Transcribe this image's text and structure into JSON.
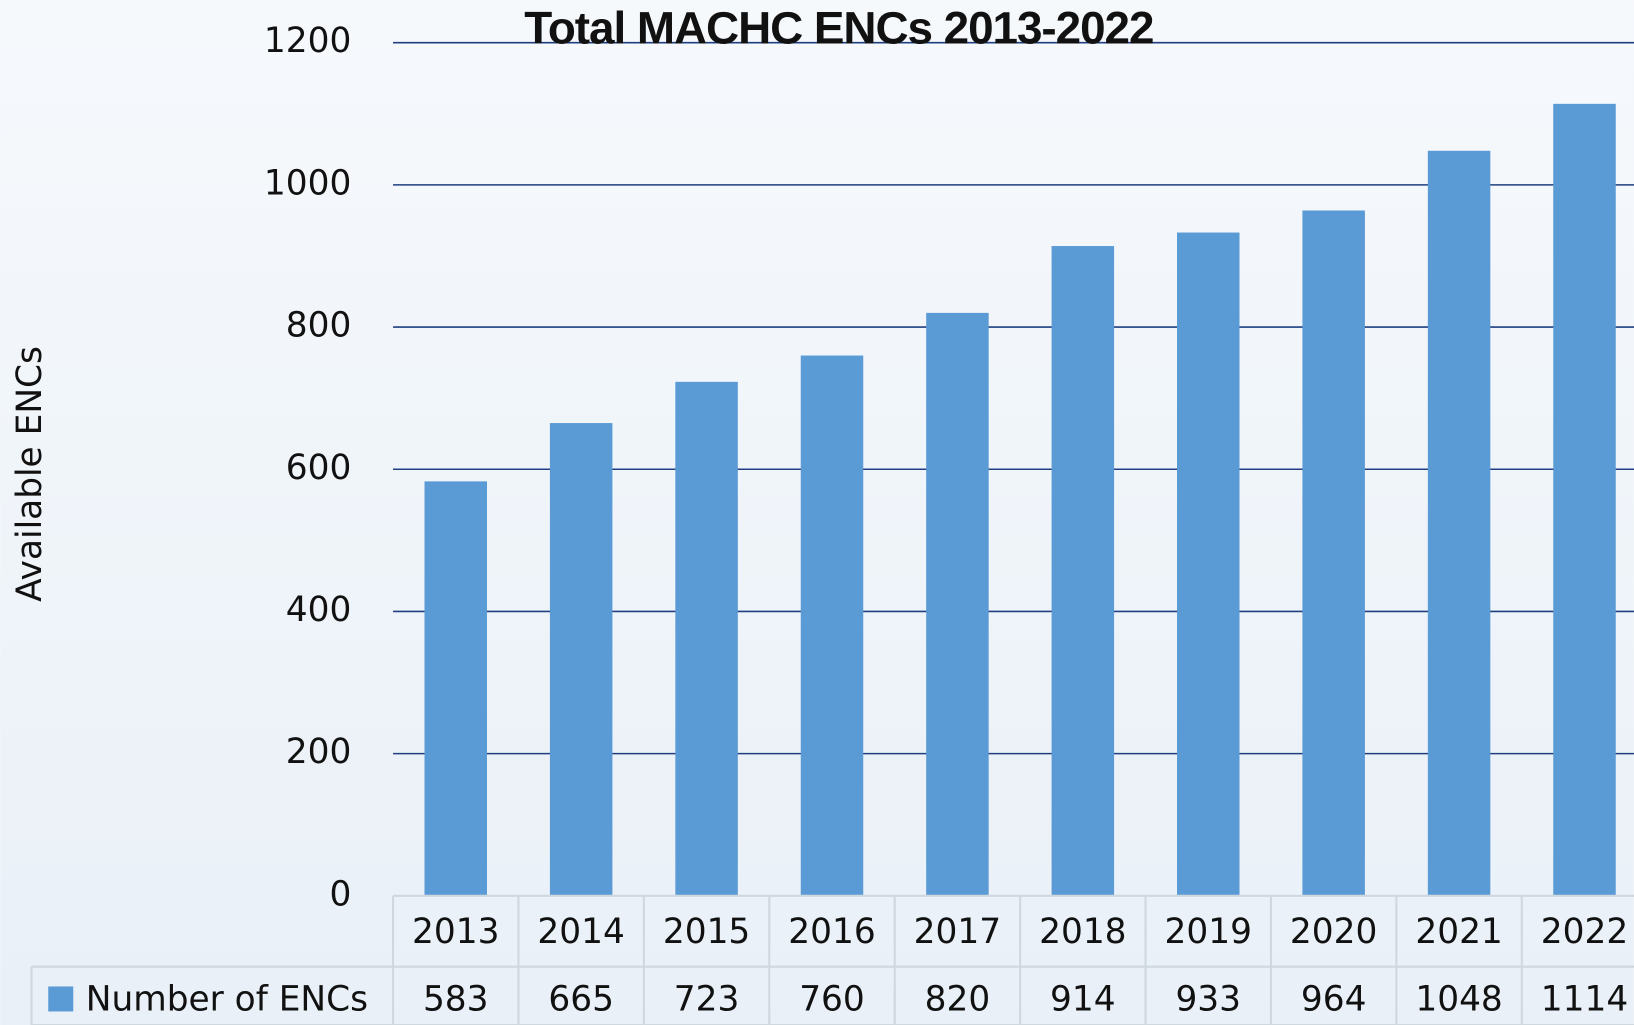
{
  "chart_data": {
    "type": "bar",
    "title": "Total MACHC ENCs 2013-2022",
    "y_label": "Available ENCs",
    "categories": [
      "2013",
      "2014",
      "2015",
      "2016",
      "2017",
      "2018",
      "2019",
      "2020",
      "2021",
      "2022"
    ],
    "series": [
      {
        "name": "Number of ENCs",
        "color": "#5b9bd5",
        "values": [
          583,
          665,
          723,
          760,
          820,
          914,
          933,
          964,
          1048,
          1114
        ]
      }
    ],
    "ylim": [
      0,
      1200
    ],
    "yticks": [
      0,
      200,
      400,
      600,
      800,
      1000,
      1200
    ],
    "grid": true,
    "data_table": true
  }
}
